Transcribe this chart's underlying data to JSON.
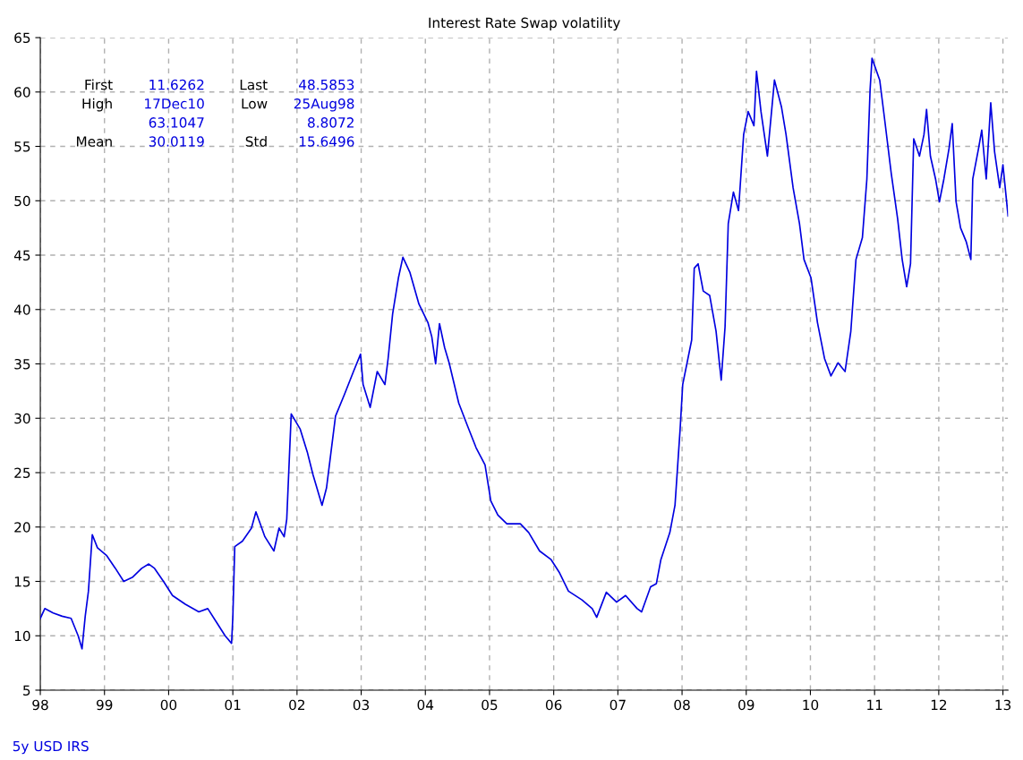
{
  "chart_data": {
    "type": "line",
    "title": "Interest Rate Swap volatility",
    "annotations": [
      "First",
      "11.6262",
      "Last",
      "48.5853",
      "High",
      "17Dec10",
      "Low",
      "25Aug98",
      "63.1047",
      "8.8072",
      "Mean",
      "30.0119",
      "Std",
      "15.6496"
    ],
    "xlim": [
      1998,
      2013.08
    ],
    "ylim": [
      5,
      65
    ],
    "xticks": [
      {
        "value": 1998,
        "label": "98"
      },
      {
        "value": 1999,
        "label": "99"
      },
      {
        "value": 2000,
        "label": "00"
      },
      {
        "value": 2001,
        "label": "01"
      },
      {
        "value": 2002,
        "label": "02"
      },
      {
        "value": 2003,
        "label": "03"
      },
      {
        "value": 2004,
        "label": "04"
      },
      {
        "value": 2005,
        "label": "05"
      },
      {
        "value": 2006,
        "label": "06"
      },
      {
        "value": 2007,
        "label": "07"
      },
      {
        "value": 2008,
        "label": "08"
      },
      {
        "value": 2009,
        "label": "09"
      },
      {
        "value": 2010,
        "label": "10"
      },
      {
        "value": 2011,
        "label": "11"
      },
      {
        "value": 2012,
        "label": "12"
      },
      {
        "value": 2013,
        "label": "13"
      }
    ],
    "yticks": [
      5,
      10,
      15,
      20,
      25,
      30,
      35,
      40,
      45,
      50,
      55,
      60,
      65
    ],
    "grid": true,
    "line_style": "solid",
    "marker": "none",
    "series": [
      {
        "name": "5y USD IRS",
        "color": "#0000e0",
        "x": [
          1998.0,
          1998.07,
          1998.2,
          1998.34,
          1998.48,
          1998.59,
          1998.65,
          1998.7,
          1998.75,
          1998.81,
          1998.89,
          1999.03,
          1999.17,
          1999.3,
          1999.44,
          1999.58,
          1999.69,
          1999.78,
          1999.92,
          2000.06,
          2000.26,
          2000.47,
          2000.61,
          2000.74,
          2000.88,
          2000.98,
          2001.0,
          2001.03,
          2001.15,
          2001.29,
          2001.36,
          2001.5,
          2001.64,
          2001.72,
          2001.8,
          2001.84,
          2001.91,
          2002.05,
          2002.16,
          2002.25,
          2002.39,
          2002.46,
          2002.6,
          2002.74,
          2002.88,
          2002.99,
          2003.03,
          2003.14,
          2003.25,
          2003.37,
          2003.42,
          2003.49,
          2003.58,
          2003.65,
          2003.76,
          2003.9,
          2004.04,
          2004.1,
          2004.16,
          2004.22,
          2004.3,
          2004.37,
          2004.52,
          2004.65,
          2004.79,
          2004.93,
          2005.02,
          2005.13,
          2005.27,
          2005.48,
          2005.61,
          2005.78,
          2005.96,
          2006.09,
          2006.23,
          2006.44,
          2006.6,
          2006.67,
          2006.82,
          2006.98,
          2007.12,
          2007.3,
          2007.37,
          2007.51,
          2007.6,
          2007.67,
          2007.81,
          2007.89,
          2007.97,
          2008.01,
          2008.15,
          2008.19,
          2008.25,
          2008.33,
          2008.43,
          2008.53,
          2008.61,
          2008.67,
          2008.72,
          2008.8,
          2008.88,
          2008.96,
          2009.03,
          2009.12,
          2009.16,
          2009.23,
          2009.33,
          2009.44,
          2009.55,
          2009.62,
          2009.73,
          2009.83,
          2009.9,
          2010.01,
          2010.11,
          2010.22,
          2010.32,
          2010.43,
          2010.54,
          2010.63,
          2010.71,
          2010.81,
          2010.88,
          2010.93,
          2010.96,
          2011.08,
          2011.15,
          2011.26,
          2011.36,
          2011.43,
          2011.5,
          2011.56,
          2011.61,
          2011.7,
          2011.77,
          2011.81,
          2011.87,
          2011.95,
          2012.01,
          2012.08,
          2012.16,
          2012.21,
          2012.27,
          2012.34,
          2012.43,
          2012.5,
          2012.53,
          2012.62,
          2012.67,
          2012.74,
          2012.81,
          2012.87,
          2012.95,
          2013.0,
          2013.08
        ],
        "values": [
          11.6,
          12.5,
          12.1,
          11.8,
          11.6,
          10.0,
          8.8,
          11.8,
          14.1,
          19.3,
          18.1,
          17.4,
          16.2,
          15.0,
          15.4,
          16.2,
          16.6,
          16.2,
          15.0,
          13.7,
          12.9,
          12.2,
          12.5,
          11.3,
          10.0,
          9.3,
          11.7,
          18.2,
          18.7,
          19.9,
          21.4,
          19.1,
          17.8,
          19.9,
          19.1,
          20.7,
          30.4,
          29.0,
          26.9,
          24.8,
          22.0,
          23.6,
          30.2,
          32.2,
          34.3,
          35.9,
          33.1,
          31.0,
          34.3,
          33.1,
          35.5,
          39.6,
          42.9,
          44.8,
          43.4,
          40.5,
          38.8,
          37.5,
          35.0,
          38.7,
          36.5,
          35.1,
          31.4,
          29.4,
          27.3,
          25.7,
          22.4,
          21.1,
          20.3,
          20.3,
          19.5,
          17.8,
          17.0,
          15.8,
          14.1,
          13.3,
          12.5,
          11.7,
          14.0,
          13.1,
          13.7,
          12.5,
          12.2,
          14.5,
          14.8,
          17.0,
          19.5,
          22.0,
          29.0,
          33.1,
          37.2,
          43.8,
          44.2,
          41.7,
          41.3,
          38.0,
          33.5,
          38.4,
          47.9,
          50.8,
          49.1,
          56.1,
          58.2,
          56.9,
          61.9,
          58.2,
          54.1,
          61.1,
          58.6,
          56.1,
          51.2,
          47.9,
          44.6,
          42.9,
          38.8,
          35.5,
          33.9,
          35.1,
          34.3,
          38.0,
          44.6,
          46.6,
          52.0,
          60.2,
          63.1,
          61.1,
          57.8,
          52.5,
          48.3,
          44.6,
          42.1,
          44.2,
          55.7,
          54.1,
          56.1,
          58.4,
          54.1,
          52.0,
          49.9,
          52.0,
          54.8,
          57.1,
          49.9,
          47.5,
          46.2,
          44.6,
          52.0,
          54.8,
          56.5,
          52.0,
          59.0,
          54.5,
          51.2,
          53.3,
          48.6
        ]
      }
    ]
  }
}
